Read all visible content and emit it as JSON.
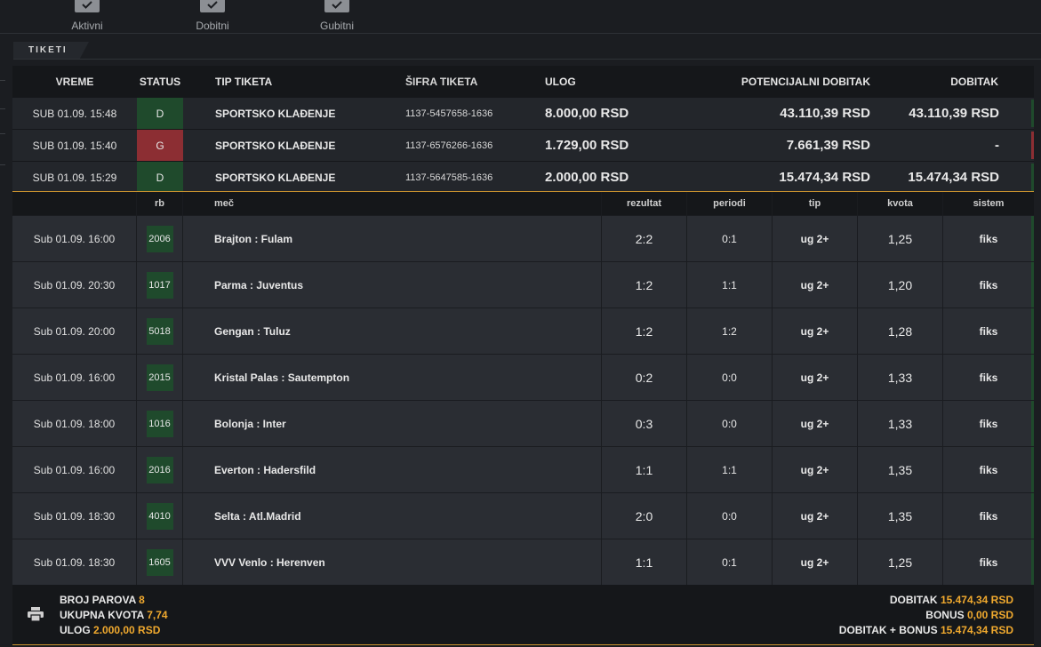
{
  "filters": [
    {
      "label": "Aktivni"
    },
    {
      "label": "Dobitni"
    },
    {
      "label": "Gubitni"
    }
  ],
  "section": {
    "title": "TIKETI"
  },
  "tickets_header": {
    "time": "VREME",
    "status": "STATUS",
    "type": "TIP TIKETA",
    "code": "ŠIFRA TIKETA",
    "stake": "ULOG",
    "potential": "POTENCIJALNI DOBITAK",
    "win": "DOBITAK"
  },
  "tickets": [
    {
      "time": "SUB 01.09. 15:48",
      "status": "D",
      "status_color": "#1f4a2c",
      "type": "SPORTSKO KLAĐENJE",
      "code": "1137-5457658-1636",
      "stake": "8.000,00 RSD",
      "potential": "43.110,39 RSD",
      "win": "43.110,39 RSD",
      "stripe": "#1f4a2c"
    },
    {
      "time": "SUB 01.09. 15:40",
      "status": "G",
      "status_color": "#8c2e33",
      "type": "SPORTSKO KLAĐENJE",
      "code": "1137-6576266-1636",
      "stake": "1.729,00 RSD",
      "potential": "7.661,39 RSD",
      "win": "-",
      "stripe": "#8c2e33"
    },
    {
      "time": "SUB 01.09. 15:29",
      "status": "D",
      "status_color": "#1f4a2c",
      "type": "SPORTSKO KLAĐENJE",
      "code": "1137-5647585-1636",
      "stake": "2.000,00 RSD",
      "potential": "15.474,34 RSD",
      "win": "15.474,34 RSD",
      "stripe": "#1f4a2c"
    }
  ],
  "matches_header": {
    "rb": "rb",
    "match": "meč",
    "result": "rezultat",
    "periods": "periodi",
    "tip": "tip",
    "odds": "kvota",
    "system": "sistem"
  },
  "matches": [
    {
      "time": "Sub 01.09. 16:00",
      "rb": "2006",
      "match": "Brajton : Fulam",
      "result": "2:2",
      "periods": "0:1",
      "tip": "ug 2+",
      "odds": "1,25",
      "system": "fiks"
    },
    {
      "time": "Sub 01.09. 20:30",
      "rb": "1017",
      "match": "Parma : Juventus",
      "result": "1:2",
      "periods": "1:1",
      "tip": "ug 2+",
      "odds": "1,20",
      "system": "fiks"
    },
    {
      "time": "Sub 01.09. 20:00",
      "rb": "5018",
      "match": "Gengan : Tuluz",
      "result": "1:2",
      "periods": "1:2",
      "tip": "ug 2+",
      "odds": "1,28",
      "system": "fiks"
    },
    {
      "time": "Sub 01.09. 16:00",
      "rb": "2015",
      "match": "Kristal Palas : Sautempton",
      "result": "0:2",
      "periods": "0:0",
      "tip": "ug 2+",
      "odds": "1,33",
      "system": "fiks"
    },
    {
      "time": "Sub 01.09. 18:00",
      "rb": "1016",
      "match": "Bolonja : Inter",
      "result": "0:3",
      "periods": "0:0",
      "tip": "ug 2+",
      "odds": "1,33",
      "system": "fiks"
    },
    {
      "time": "Sub 01.09. 16:00",
      "rb": "2016",
      "match": "Everton : Hadersfild",
      "result": "1:1",
      "periods": "1:1",
      "tip": "ug 2+",
      "odds": "1,35",
      "system": "fiks"
    },
    {
      "time": "Sub 01.09. 18:30",
      "rb": "4010",
      "match": "Selta : Atl.Madrid",
      "result": "2:0",
      "periods": "0:0",
      "tip": "ug 2+",
      "odds": "1,35",
      "system": "fiks"
    },
    {
      "time": "Sub 01.09. 18:30",
      "rb": "1605",
      "match": "VVV Venlo : Herenven",
      "result": "1:1",
      "periods": "0:1",
      "tip": "ug 2+",
      "odds": "1,25",
      "system": "fiks"
    }
  ],
  "summary": {
    "pairs_label": "BROJ PAROVA",
    "pairs_value": "8",
    "total_odds_label": "UKUPNA KVOTA",
    "total_odds_value": "7,74",
    "stake_label": "ULOG",
    "stake_value": "2.000,00 RSD",
    "win_label": "DOBITAK",
    "win_value": "15.474,34 RSD",
    "bonus_label": "BONUS",
    "bonus_value": "0,00 RSD",
    "win_bonus_label": "DOBITAK + BONUS",
    "win_bonus_value": "15.474,34 RSD",
    "print_icon": "printer-icon"
  },
  "colors": {
    "accent": "#f0a92e",
    "win_green": "#1f4a2c",
    "loss_red": "#8c2e33"
  }
}
